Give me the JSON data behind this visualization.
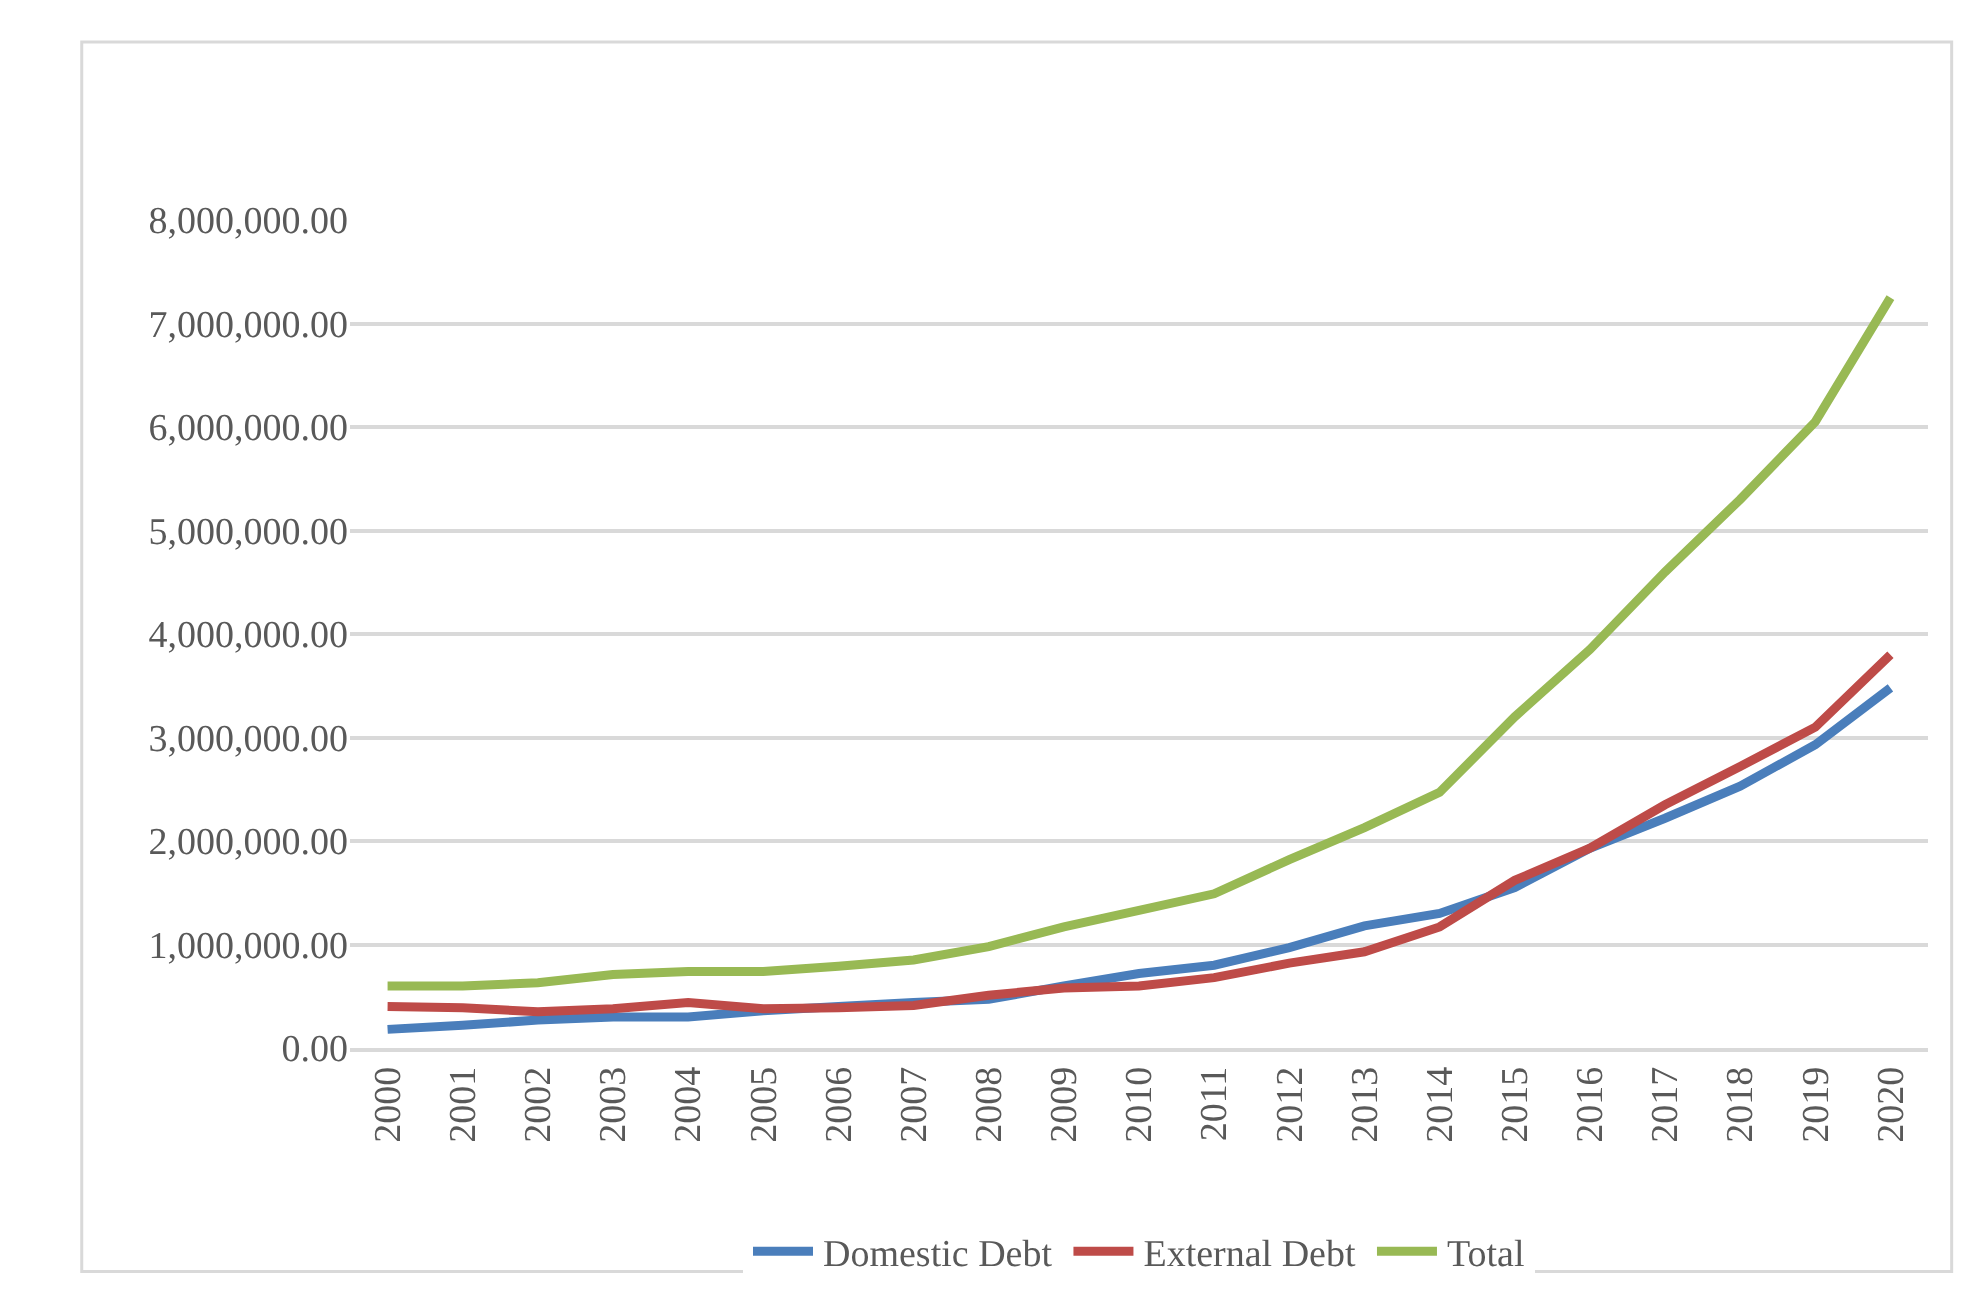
{
  "chart_data": {
    "type": "line",
    "categories": [
      "2000",
      "2001",
      "2002",
      "2003",
      "2004",
      "2005",
      "2006",
      "2007",
      "2008",
      "2009",
      "2010",
      "2011",
      "2012",
      "2013",
      "2014",
      "2015",
      "2016",
      "2017",
      "2018",
      "2019",
      "2020"
    ],
    "series": [
      {
        "name": "Domestic Debt",
        "color": "#4a7ebb",
        "values": [
          180000,
          220000,
          270000,
          300000,
          300000,
          360000,
          400000,
          440000,
          470000,
          600000,
          720000,
          800000,
          970000,
          1180000,
          1300000,
          1550000,
          1930000,
          2220000,
          2530000,
          2930000,
          3480000
        ]
      },
      {
        "name": "External Debt",
        "color": "#be4b48",
        "values": [
          400000,
          390000,
          350000,
          380000,
          440000,
          380000,
          390000,
          410000,
          510000,
          580000,
          600000,
          680000,
          820000,
          930000,
          1170000,
          1620000,
          1930000,
          2350000,
          2720000,
          3100000,
          3800000
        ]
      },
      {
        "name": "Total",
        "color": "#98b954",
        "values": [
          600000,
          600000,
          630000,
          710000,
          740000,
          740000,
          790000,
          850000,
          980000,
          1170000,
          1330000,
          1490000,
          1820000,
          2130000,
          2470000,
          3200000,
          3850000,
          4600000,
          5300000,
          6050000,
          7250000
        ]
      }
    ],
    "ylim": [
      0,
      8000000
    ],
    "yticks": [
      {
        "value": 0,
        "label": "0.00"
      },
      {
        "value": 1000000,
        "label": "1,000,000.00"
      },
      {
        "value": 2000000,
        "label": "2,000,000.00"
      },
      {
        "value": 3000000,
        "label": "3,000,000.00"
      },
      {
        "value": 4000000,
        "label": "4,000,000.00"
      },
      {
        "value": 5000000,
        "label": "5,000,000.00"
      },
      {
        "value": 6000000,
        "label": "6,000,000.00"
      },
      {
        "value": 7000000,
        "label": "7,000,000.00"
      },
      {
        "value": 8000000,
        "label": "8,000,000.00"
      }
    ],
    "grid": "y",
    "legend": "bottom",
    "marker": "none",
    "line_style": "solid"
  }
}
